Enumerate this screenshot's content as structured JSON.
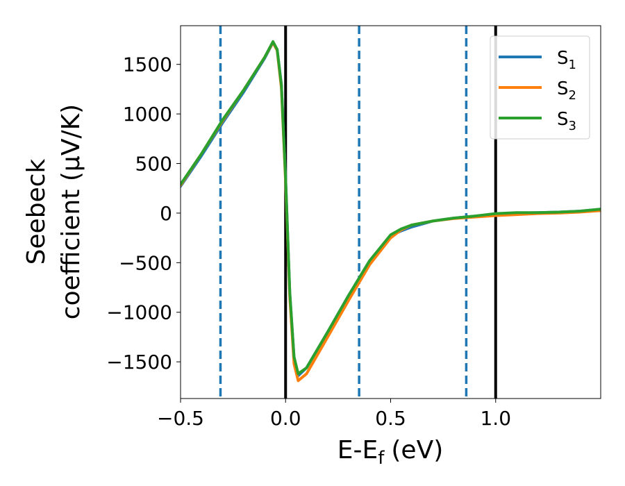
{
  "chart_data": {
    "type": "line",
    "xlabel": "E-E",
    "xlabel_sub": "f",
    "xlabel_unit": "(eV)",
    "ylabel_line1": "Seebeck",
    "ylabel_line2": "coefficient  (μV/K)",
    "xlim": [
      -0.5,
      1.5
    ],
    "ylim": [
      -1870,
      1890
    ],
    "x_ticks": [
      -0.5,
      0.0,
      0.5,
      1.0
    ],
    "x_tick_labels": [
      "−0.5",
      "0.0",
      "0.5",
      "1.0"
    ],
    "y_ticks": [
      1500,
      1000,
      500,
      0,
      -500,
      -1000,
      -1500
    ],
    "y_tick_labels": [
      "1500",
      "1000",
      "500",
      "0",
      "−500",
      "−1000",
      "−1500"
    ],
    "grid": false,
    "legend_position": "top-right",
    "vlines": [
      {
        "x": -0.31,
        "style": "dashed",
        "color": "#1f77b4"
      },
      {
        "x": 0.0,
        "style": "solid",
        "color": "#000000"
      },
      {
        "x": 0.35,
        "style": "dashed",
        "color": "#1f77b4"
      },
      {
        "x": 0.86,
        "style": "dashed",
        "color": "#1f77b4"
      },
      {
        "x": 1.0,
        "style": "solid",
        "color": "#000000"
      }
    ],
    "series": [
      {
        "name": "S",
        "sub": "1",
        "color": "#1f77b4",
        "x": [
          -0.5,
          -0.4,
          -0.3,
          -0.2,
          -0.1,
          -0.06,
          -0.04,
          -0.02,
          0.0,
          0.02,
          0.04,
          0.06,
          0.1,
          0.2,
          0.3,
          0.4,
          0.5,
          0.55,
          0.6,
          0.7,
          0.8,
          0.9,
          1.0,
          1.1,
          1.2,
          1.3,
          1.4,
          1.5
        ],
        "y": [
          270,
          580,
          910,
          1220,
          1560,
          1720,
          1650,
          1300,
          350,
          -800,
          -1450,
          -1640,
          -1560,
          -1200,
          -830,
          -480,
          -230,
          -180,
          -140,
          -80,
          -50,
          -30,
          -10,
          0,
          5,
          10,
          20,
          40
        ]
      },
      {
        "name": "S",
        "sub": "2",
        "color": "#ff7f0e",
        "x": [
          -0.5,
          -0.4,
          -0.3,
          -0.2,
          -0.1,
          -0.06,
          -0.04,
          -0.02,
          0.0,
          0.02,
          0.04,
          0.06,
          0.1,
          0.2,
          0.3,
          0.4,
          0.5,
          0.55,
          0.6,
          0.7,
          0.8,
          0.9,
          1.0,
          1.1,
          1.2,
          1.3,
          1.4,
          1.5
        ],
        "y": [
          280,
          600,
          930,
          1240,
          1570,
          1720,
          1640,
          1260,
          300,
          -850,
          -1520,
          -1690,
          -1620,
          -1250,
          -880,
          -520,
          -250,
          -170,
          -120,
          -80,
          -55,
          -40,
          -25,
          -15,
          -5,
          0,
          10,
          25
        ]
      },
      {
        "name": "S",
        "sub": "3",
        "color": "#2ca02c",
        "x": [
          -0.5,
          -0.4,
          -0.3,
          -0.2,
          -0.1,
          -0.06,
          -0.04,
          -0.02,
          0.0,
          0.02,
          0.04,
          0.06,
          0.1,
          0.2,
          0.3,
          0.4,
          0.5,
          0.55,
          0.6,
          0.7,
          0.8,
          0.9,
          1.0,
          1.1,
          1.2,
          1.3,
          1.4,
          1.5
        ],
        "y": [
          290,
          600,
          940,
          1240,
          1570,
          1730,
          1650,
          1290,
          340,
          -800,
          -1450,
          -1620,
          -1560,
          -1200,
          -830,
          -480,
          -220,
          -160,
          -120,
          -80,
          -50,
          -30,
          -5,
          5,
          5,
          10,
          20,
          40
        ]
      }
    ]
  }
}
